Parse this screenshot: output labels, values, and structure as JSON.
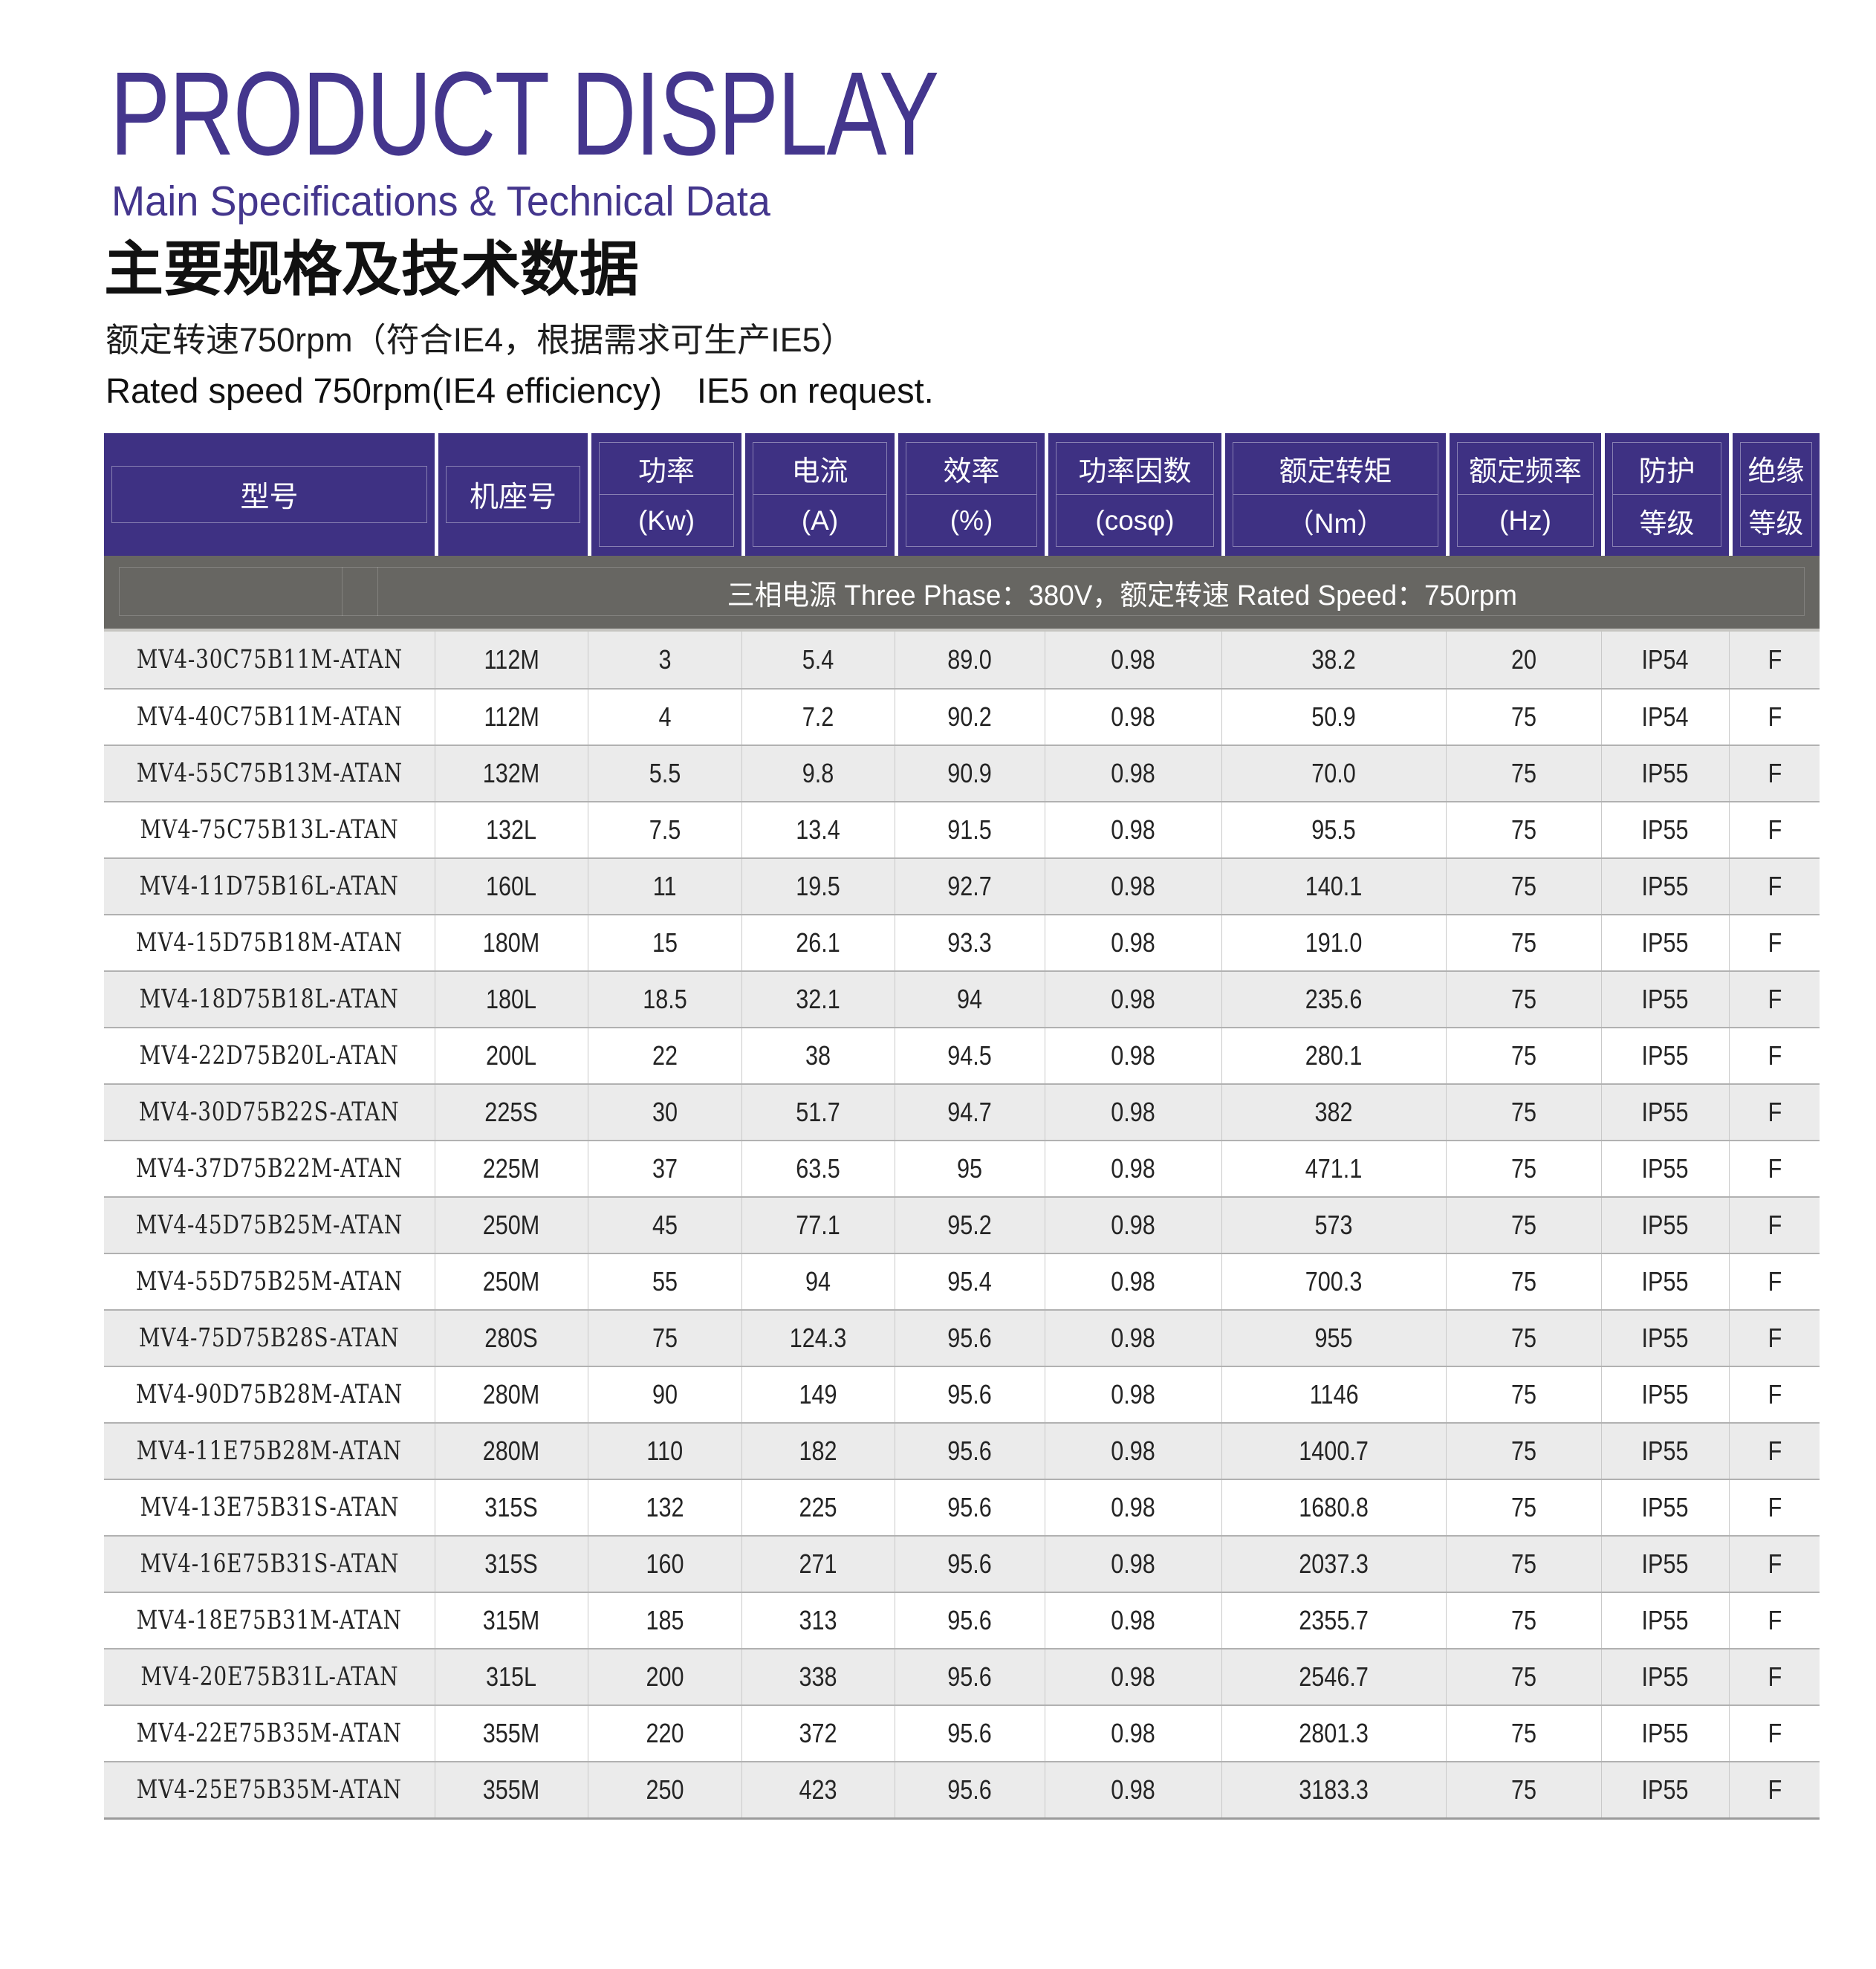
{
  "page": {
    "title": "PRODUCT DISPLAY",
    "subtitle": "Main Specifications & Technical Data",
    "heading_cn": "主要规格及技术数据",
    "line_cn": "额定转速750rpm（符合IE4，根据需求可生产IE5）",
    "line_en": "Rated speed 750rpm(IE4 efficiency)　IE5 on request.",
    "colors": {
      "accent_purple": "#3e3183",
      "title_purple": "#44368d",
      "banner_gray": "#676662",
      "row_alt_gray": "#ebebeb"
    }
  },
  "table": {
    "banner": "三相电源 Three Phase：380V，额定转速 Rated Speed：750rpm",
    "columns": [
      {
        "line1": "型号",
        "line2": ""
      },
      {
        "line1": "机座号",
        "line2": ""
      },
      {
        "line1": "功率",
        "line2": "(Kw)"
      },
      {
        "line1": "电流",
        "line2": "(A)"
      },
      {
        "line1": "效率",
        "line2": "(%)"
      },
      {
        "line1": "功率因数",
        "line2": "(cosφ)"
      },
      {
        "line1": "额定转矩",
        "line2": "（Nm）"
      },
      {
        "line1": "额定频率",
        "line2": "(Hz)"
      },
      {
        "line1": "防护",
        "line2": "等级"
      },
      {
        "line1": "绝缘",
        "line2": "等级"
      }
    ],
    "rows": [
      [
        "MV4-30C75B11M-ATAN",
        "112M",
        "3",
        "5.4",
        "89.0",
        "0.98",
        "38.2",
        "20",
        "IP54",
        "F"
      ],
      [
        "MV4-40C75B11M-ATAN",
        "112M",
        "4",
        "7.2",
        "90.2",
        "0.98",
        "50.9",
        "75",
        "IP54",
        "F"
      ],
      [
        "MV4-55C75B13M-ATAN",
        "132M",
        "5.5",
        "9.8",
        "90.9",
        "0.98",
        "70.0",
        "75",
        "IP55",
        "F"
      ],
      [
        "MV4-75C75B13L-ATAN",
        "132L",
        "7.5",
        "13.4",
        "91.5",
        "0.98",
        "95.5",
        "75",
        "IP55",
        "F"
      ],
      [
        "MV4-11D75B16L-ATAN",
        "160L",
        "11",
        "19.5",
        "92.7",
        "0.98",
        "140.1",
        "75",
        "IP55",
        "F"
      ],
      [
        "MV4-15D75B18M-ATAN",
        "180M",
        "15",
        "26.1",
        "93.3",
        "0.98",
        "191.0",
        "75",
        "IP55",
        "F"
      ],
      [
        "MV4-18D75B18L-ATAN",
        "180L",
        "18.5",
        "32.1",
        "94",
        "0.98",
        "235.6",
        "75",
        "IP55",
        "F"
      ],
      [
        "MV4-22D75B20L-ATAN",
        "200L",
        "22",
        "38",
        "94.5",
        "0.98",
        "280.1",
        "75",
        "IP55",
        "F"
      ],
      [
        "MV4-30D75B22S-ATAN",
        "225S",
        "30",
        "51.7",
        "94.7",
        "0.98",
        "382",
        "75",
        "IP55",
        "F"
      ],
      [
        "MV4-37D75B22M-ATAN",
        "225M",
        "37",
        "63.5",
        "95",
        "0.98",
        "471.1",
        "75",
        "IP55",
        "F"
      ],
      [
        "MV4-45D75B25M-ATAN",
        "250M",
        "45",
        "77.1",
        "95.2",
        "0.98",
        "573",
        "75",
        "IP55",
        "F"
      ],
      [
        "MV4-55D75B25M-ATAN",
        "250M",
        "55",
        "94",
        "95.4",
        "0.98",
        "700.3",
        "75",
        "IP55",
        "F"
      ],
      [
        "MV4-75D75B28S-ATAN",
        "280S",
        "75",
        "124.3",
        "95.6",
        "0.98",
        "955",
        "75",
        "IP55",
        "F"
      ],
      [
        "MV4-90D75B28M-ATAN",
        "280M",
        "90",
        "149",
        "95.6",
        "0.98",
        "1146",
        "75",
        "IP55",
        "F"
      ],
      [
        "MV4-11E75B28M-ATAN",
        "280M",
        "110",
        "182",
        "95.6",
        "0.98",
        "1400.7",
        "75",
        "IP55",
        "F"
      ],
      [
        "MV4-13E75B31S-ATAN",
        "315S",
        "132",
        "225",
        "95.6",
        "0.98",
        "1680.8",
        "75",
        "IP55",
        "F"
      ],
      [
        "MV4-16E75B31S-ATAN",
        "315S",
        "160",
        "271",
        "95.6",
        "0.98",
        "2037.3",
        "75",
        "IP55",
        "F"
      ],
      [
        "MV4-18E75B31M-ATAN",
        "315M",
        "185",
        "313",
        "95.6",
        "0.98",
        "2355.7",
        "75",
        "IP55",
        "F"
      ],
      [
        "MV4-20E75B31L-ATAN",
        "315L",
        "200",
        "338",
        "95.6",
        "0.98",
        "2546.7",
        "75",
        "IP55",
        "F"
      ],
      [
        "MV4-22E75B35M-ATAN",
        "355M",
        "220",
        "372",
        "95.6",
        "0.98",
        "2801.3",
        "75",
        "IP55",
        "F"
      ],
      [
        "MV4-25E75B35M-ATAN",
        "355M",
        "250",
        "423",
        "95.6",
        "0.98",
        "3183.3",
        "75",
        "IP55",
        "F"
      ]
    ]
  }
}
